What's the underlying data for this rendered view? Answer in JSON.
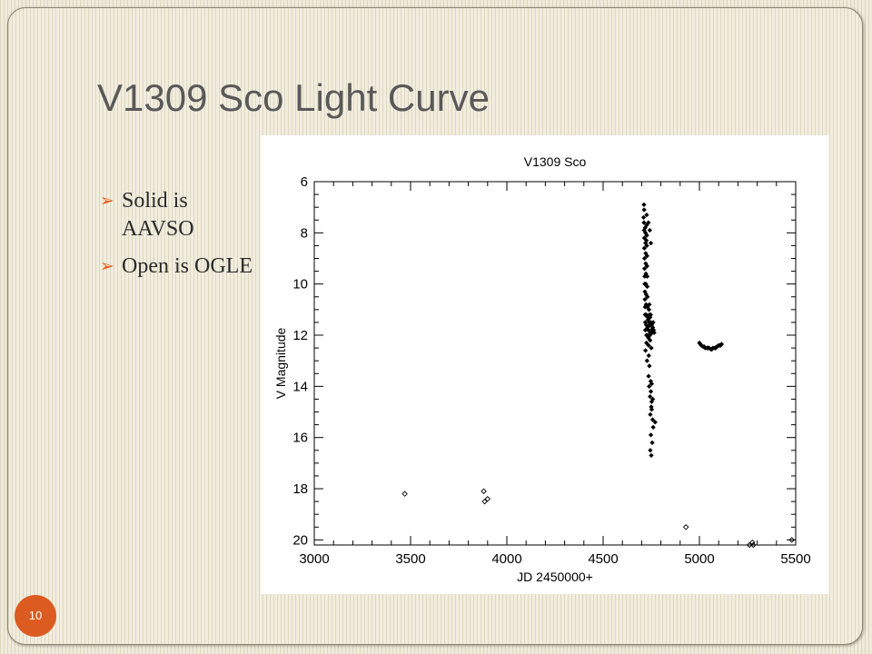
{
  "slide": {
    "title": "V1309 Sco Light Curve",
    "page_number": "10",
    "accent_color": "#dc5b20",
    "bullets": [
      {
        "icon": "arrow-bullet-icon",
        "text": "Solid is AAVSO"
      },
      {
        "icon": "arrow-bullet-icon",
        "text": "Open is OGLE"
      }
    ]
  },
  "chart_data": {
    "type": "scatter",
    "title": "V1309 Sco",
    "xlabel": "JD 2450000+",
    "ylabel": "V Magnitude",
    "xlim": [
      3000,
      5500
    ],
    "ylim": [
      20.2,
      6
    ],
    "y_inverted": true,
    "x_ticks": [
      3000,
      3500,
      4000,
      4500,
      5000,
      5500
    ],
    "y_ticks": [
      6,
      8,
      10,
      12,
      14,
      16,
      18,
      20
    ],
    "grid": false,
    "series": [
      {
        "name": "AAVSO",
        "marker": "filled",
        "x": [
          4712,
          4712,
          4713,
          4713,
          4714,
          4714,
          4715,
          4715,
          4716,
          4716,
          4717,
          4717,
          4718,
          4718,
          4719,
          4719,
          4720,
          4720,
          4721,
          4721,
          4722,
          4722,
          4723,
          4723,
          4724,
          4724,
          4725,
          4725,
          4726,
          4726,
          4727,
          4727,
          4728,
          4728,
          4729,
          4729,
          4730,
          4730,
          4731,
          4731,
          4732,
          4733,
          4734,
          4735,
          4736,
          4737,
          4738,
          4739,
          4740,
          4741,
          4742,
          4743,
          4744,
          4745,
          4746,
          4747,
          4748,
          4750,
          4752,
          4755,
          4758,
          4760,
          4762,
          4765,
          4710,
          4718,
          4725,
          4735,
          4742,
          4748,
          4720,
          4728,
          4744,
          4750,
          4740,
          4736,
          4739,
          4744,
          4747,
          4752,
          4758,
          4750,
          4745,
          4748,
          4752,
          4757,
          4760,
          4748,
          4755,
          4745,
          4750,
          4752,
          4770,
          5000,
          5010,
          5020,
          5030,
          5040,
          5050,
          5060,
          5070,
          5080,
          5090,
          5100,
          5110,
          5115,
          5005,
          5025,
          5045,
          5065,
          5085,
          5105
        ],
        "y": [
          6.9,
          7.6,
          7.1,
          7.9,
          8.2,
          8.6,
          9.0,
          9.4,
          9.7,
          10.0,
          10.3,
          10.6,
          10.9,
          11.2,
          11.5,
          11.8,
          8.0,
          8.4,
          8.8,
          9.2,
          9.6,
          10.0,
          10.4,
          10.8,
          11.2,
          11.6,
          12.0,
          12.3,
          7.3,
          7.7,
          8.1,
          8.5,
          8.9,
          9.3,
          9.7,
          10.1,
          10.5,
          10.9,
          11.3,
          11.7,
          12.0,
          11.4,
          11.8,
          12.1,
          12.4,
          12.8,
          11.0,
          11.5,
          10.8,
          11.2,
          11.6,
          12.0,
          11.3,
          11.6,
          11.9,
          11.2,
          11.5,
          11.8,
          11.6,
          11.9,
          11.7,
          11.5,
          11.8,
          11.9,
          7.4,
          7.8,
          8.3,
          7.6,
          7.9,
          8.4,
          12.6,
          13.0,
          12.2,
          12.5,
          13.2,
          13.6,
          14.0,
          14.4,
          13.8,
          13.9,
          14.5,
          14.8,
          15.1,
          14.2,
          14.6,
          15.3,
          15.6,
          15.9,
          16.2,
          16.5,
          16.7,
          14.9,
          15.4,
          12.3,
          12.4,
          12.45,
          12.5,
          12.5,
          12.5,
          12.55,
          12.5,
          12.5,
          12.45,
          12.4,
          12.4,
          12.35,
          12.35,
          12.45,
          12.5,
          12.55,
          12.5,
          12.4
        ]
      },
      {
        "name": "OGLE",
        "marker": "open",
        "x": [
          3470,
          3880,
          3885,
          3900,
          4930,
          5260,
          5275,
          5280,
          5480
        ],
        "y": [
          18.2,
          18.1,
          18.5,
          18.4,
          19.5,
          20.2,
          20.1,
          20.2,
          20.0
        ]
      }
    ]
  }
}
